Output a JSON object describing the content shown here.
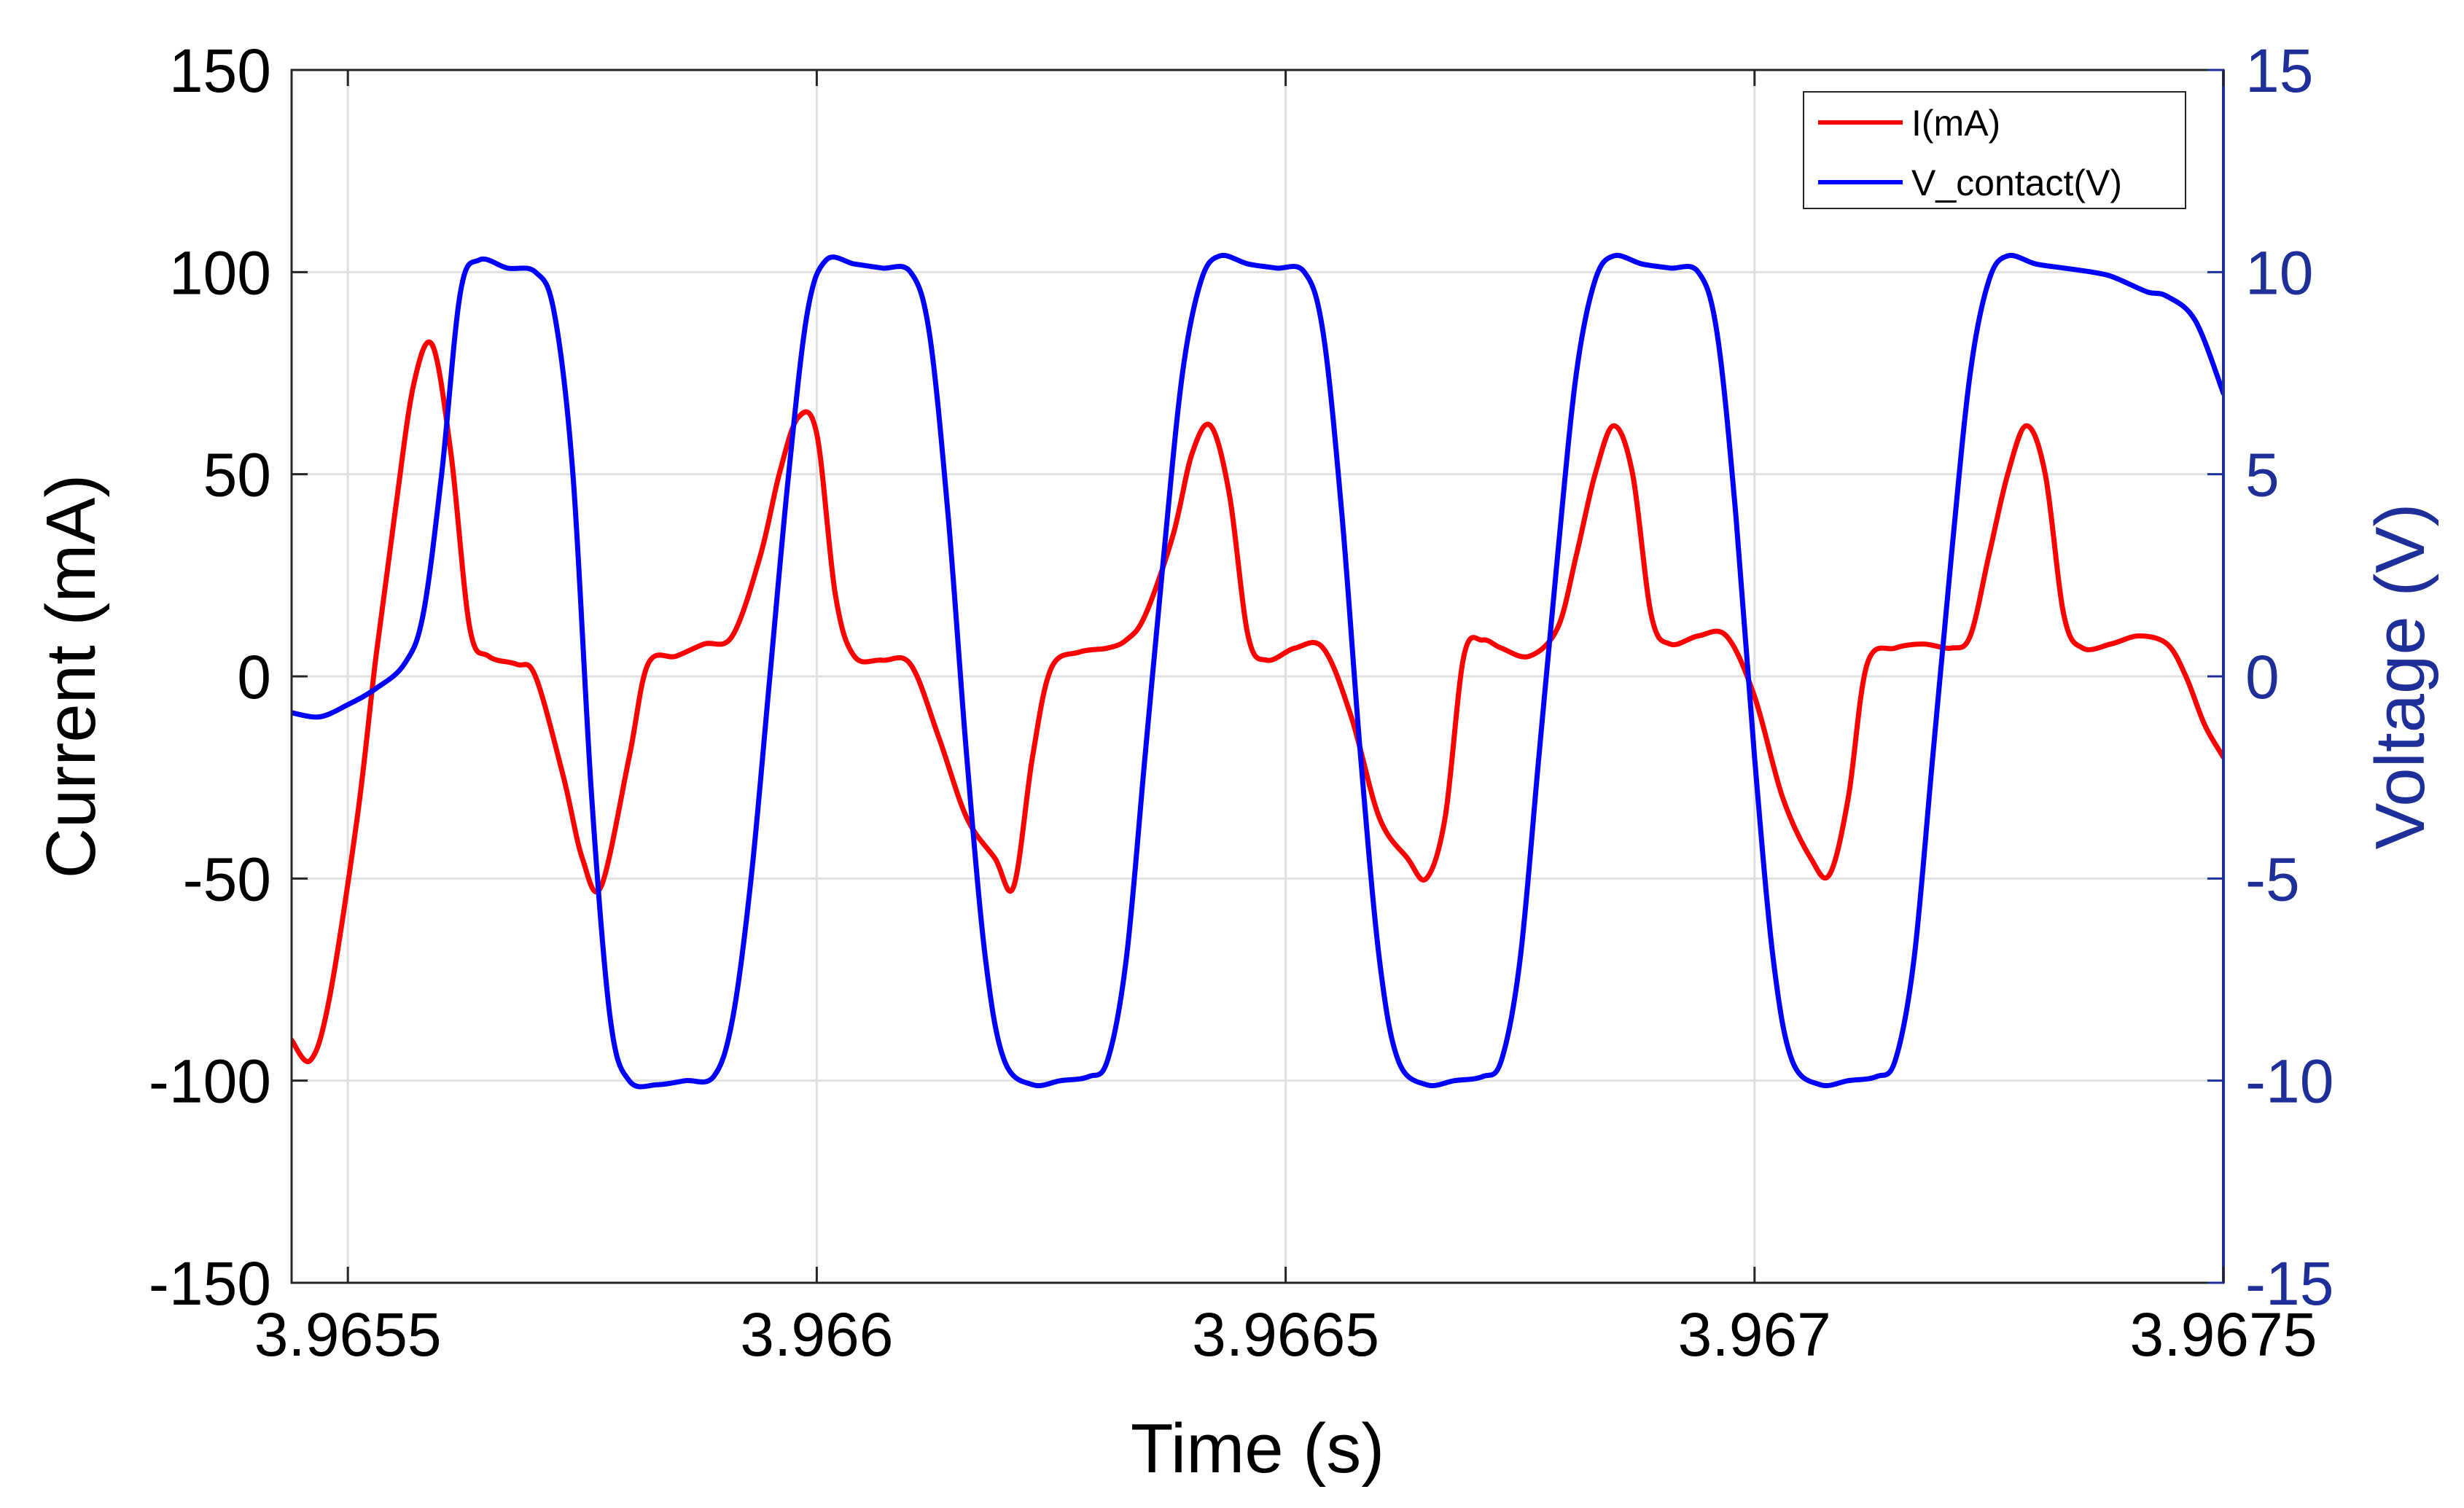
{
  "chart_data": {
    "type": "line",
    "xlabel": "Time (s)",
    "ylabel_left": "Current (mA)",
    "ylabel_right": "Voltage (V)",
    "xlim": [
      3.96544,
      3.9675
    ],
    "ylim_left": [
      -150,
      150
    ],
    "ylim_right": [
      -15,
      15
    ],
    "x_ticks": [
      3.9655,
      3.966,
      3.9665,
      3.967,
      3.9675
    ],
    "x_tick_labels": [
      "3.9655",
      "3.966",
      "3.9665",
      "3.967",
      "3.9675"
    ],
    "y_left_ticks": [
      150,
      100,
      50,
      0,
      -50,
      -100,
      -150
    ],
    "y_left_tick_labels": [
      "150",
      "100",
      "50",
      "0",
      "-50",
      "-100",
      "-150"
    ],
    "y_right_ticks": [
      15,
      10,
      5,
      0,
      -5,
      -10,
      -15
    ],
    "y_right_tick_labels": [
      "15",
      "10",
      "5",
      "0",
      "-5",
      "-10",
      "-15"
    ],
    "grid": true,
    "legend_position": "top-right",
    "series": [
      {
        "name": "I(mA)",
        "axis": "left",
        "color": "#ff0000",
        "points": [
          [
            3.96544,
            -90
          ],
          [
            3.96546,
            -95
          ],
          [
            3.96548,
            -80
          ],
          [
            3.96551,
            -35
          ],
          [
            3.96553,
            5
          ],
          [
            3.96555,
            40
          ],
          [
            3.96557,
            72
          ],
          [
            3.96559,
            82
          ],
          [
            3.96561,
            55
          ],
          [
            3.96563,
            12
          ],
          [
            3.96565,
            5
          ],
          [
            3.96568,
            3
          ],
          [
            3.9657,
            0
          ],
          [
            3.96573,
            -25
          ],
          [
            3.96575,
            -45
          ],
          [
            3.96577,
            -52
          ],
          [
            3.9658,
            -20
          ],
          [
            3.96582,
            3
          ],
          [
            3.96585,
            5
          ],
          [
            3.96588,
            8
          ],
          [
            3.96591,
            10
          ],
          [
            3.96594,
            30
          ],
          [
            3.96596,
            50
          ],
          [
            3.96598,
            64
          ],
          [
            3.966,
            60
          ],
          [
            3.96602,
            20
          ],
          [
            3.96604,
            5
          ],
          [
            3.96607,
            4
          ],
          [
            3.9661,
            3
          ],
          [
            3.96613,
            -15
          ],
          [
            3.96616,
            -35
          ],
          [
            3.96619,
            -45
          ],
          [
            3.96621,
            -52
          ],
          [
            3.96623,
            -20
          ],
          [
            3.96625,
            2
          ],
          [
            3.96628,
            6
          ],
          [
            3.96631,
            7
          ],
          [
            3.96633,
            9
          ],
          [
            3.96635,
            15
          ],
          [
            3.96638,
            35
          ],
          [
            3.9664,
            55
          ],
          [
            3.96642,
            62
          ],
          [
            3.96644,
            45
          ],
          [
            3.96646,
            10
          ],
          [
            3.96648,
            4
          ],
          [
            3.96651,
            7
          ],
          [
            3.96654,
            7
          ],
          [
            3.96657,
            -10
          ],
          [
            3.9666,
            -35
          ],
          [
            3.96663,
            -45
          ],
          [
            3.96665,
            -50
          ],
          [
            3.96667,
            -35
          ],
          [
            3.96669,
            5
          ],
          [
            3.96671,
            9
          ],
          [
            3.96673,
            7
          ],
          [
            3.96676,
            5
          ],
          [
            3.96679,
            12
          ],
          [
            3.96681,
            30
          ],
          [
            3.96683,
            50
          ],
          [
            3.96685,
            62
          ],
          [
            3.96687,
            50
          ],
          [
            3.96689,
            15
          ],
          [
            3.96691,
            8
          ],
          [
            3.96694,
            10
          ],
          [
            3.96697,
            10
          ],
          [
            3.967,
            -5
          ],
          [
            3.96703,
            -30
          ],
          [
            3.96706,
            -45
          ],
          [
            3.96708,
            -49
          ],
          [
            3.9671,
            -30
          ],
          [
            3.96712,
            3
          ],
          [
            3.96715,
            7
          ],
          [
            3.96718,
            8
          ],
          [
            3.96721,
            7
          ],
          [
            3.96723,
            10
          ],
          [
            3.96725,
            30
          ],
          [
            3.96727,
            50
          ],
          [
            3.96729,
            62
          ],
          [
            3.96731,
            50
          ],
          [
            3.96733,
            15
          ],
          [
            3.96735,
            7
          ],
          [
            3.96738,
            8
          ],
          [
            3.96741,
            10
          ],
          [
            3.96744,
            8
          ],
          [
            3.96746,
            0
          ],
          [
            3.96748,
            -12
          ],
          [
            3.9675,
            -20
          ]
        ]
      },
      {
        "name": "V_contact(V)",
        "axis": "right",
        "color": "#0000ff",
        "points": [
          [
            3.96544,
            -0.9
          ],
          [
            3.96547,
            -1.0
          ],
          [
            3.9655,
            -0.7
          ],
          [
            3.96553,
            -0.3
          ],
          [
            3.96556,
            0.3
          ],
          [
            3.96558,
            1.5
          ],
          [
            3.9656,
            5.0
          ],
          [
            3.96562,
            9.5
          ],
          [
            3.96564,
            10.3
          ],
          [
            3.96567,
            10.1
          ],
          [
            3.9657,
            10.0
          ],
          [
            3.96572,
            9.0
          ],
          [
            3.96574,
            5.0
          ],
          [
            3.96576,
            -3.0
          ],
          [
            3.96578,
            -8.5
          ],
          [
            3.9658,
            -10.0
          ],
          [
            3.96583,
            -10.1
          ],
          [
            3.96586,
            -10.0
          ],
          [
            3.96589,
            -9.9
          ],
          [
            3.96591,
            -8.5
          ],
          [
            3.96593,
            -5.0
          ],
          [
            3.96595,
            0.0
          ],
          [
            3.96597,
            5.0
          ],
          [
            3.96599,
            9.0
          ],
          [
            3.96601,
            10.3
          ],
          [
            3.96604,
            10.2
          ],
          [
            3.96607,
            10.1
          ],
          [
            3.9661,
            10.0
          ],
          [
            3.96612,
            8.5
          ],
          [
            3.96614,
            4.0
          ],
          [
            3.96616,
            -2.0
          ],
          [
            3.96618,
            -7.0
          ],
          [
            3.9662,
            -9.5
          ],
          [
            3.96623,
            -10.1
          ],
          [
            3.96626,
            -10.0
          ],
          [
            3.96629,
            -9.9
          ],
          [
            3.96631,
            -9.5
          ],
          [
            3.96633,
            -7.0
          ],
          [
            3.96635,
            -2.0
          ],
          [
            3.96637,
            3.0
          ],
          [
            3.96639,
            7.5
          ],
          [
            3.96641,
            9.8
          ],
          [
            3.96643,
            10.4
          ],
          [
            3.96646,
            10.2
          ],
          [
            3.96649,
            10.1
          ],
          [
            3.96652,
            10.0
          ],
          [
            3.96654,
            8.5
          ],
          [
            3.96656,
            4.0
          ],
          [
            3.96658,
            -2.0
          ],
          [
            3.9666,
            -7.0
          ],
          [
            3.96662,
            -9.5
          ],
          [
            3.96665,
            -10.1
          ],
          [
            3.96668,
            -10.0
          ],
          [
            3.96671,
            -9.9
          ],
          [
            3.96673,
            -9.5
          ],
          [
            3.96675,
            -7.0
          ],
          [
            3.96677,
            -2.0
          ],
          [
            3.96679,
            3.0
          ],
          [
            3.96681,
            7.5
          ],
          [
            3.96683,
            9.8
          ],
          [
            3.96685,
            10.4
          ],
          [
            3.96688,
            10.2
          ],
          [
            3.96691,
            10.1
          ],
          [
            3.96694,
            10.0
          ],
          [
            3.96696,
            8.5
          ],
          [
            3.96698,
            4.0
          ],
          [
            3.967,
            -2.0
          ],
          [
            3.96702,
            -7.0
          ],
          [
            3.96704,
            -9.5
          ],
          [
            3.96707,
            -10.1
          ],
          [
            3.9671,
            -10.0
          ],
          [
            3.96713,
            -9.9
          ],
          [
            3.96715,
            -9.5
          ],
          [
            3.96717,
            -7.0
          ],
          [
            3.96719,
            -2.0
          ],
          [
            3.96721,
            3.0
          ],
          [
            3.96723,
            7.5
          ],
          [
            3.96725,
            9.8
          ],
          [
            3.96727,
            10.4
          ],
          [
            3.9673,
            10.2
          ],
          [
            3.96733,
            10.1
          ],
          [
            3.96736,
            10.0
          ],
          [
            3.96738,
            9.9
          ],
          [
            3.9674,
            9.7
          ],
          [
            3.96742,
            9.5
          ],
          [
            3.96744,
            9.4
          ],
          [
            3.96747,
            8.8
          ],
          [
            3.9675,
            7.0
          ]
        ]
      }
    ]
  },
  "legend": {
    "items": [
      {
        "label": "I(mA)",
        "color": "#ff0000"
      },
      {
        "label": "V_contact(V)",
        "color": "#0000ff"
      }
    ]
  },
  "colors": {
    "left_axis": "#000000",
    "right_axis": "#1f2f9a",
    "grid": "#e0e0e0"
  }
}
